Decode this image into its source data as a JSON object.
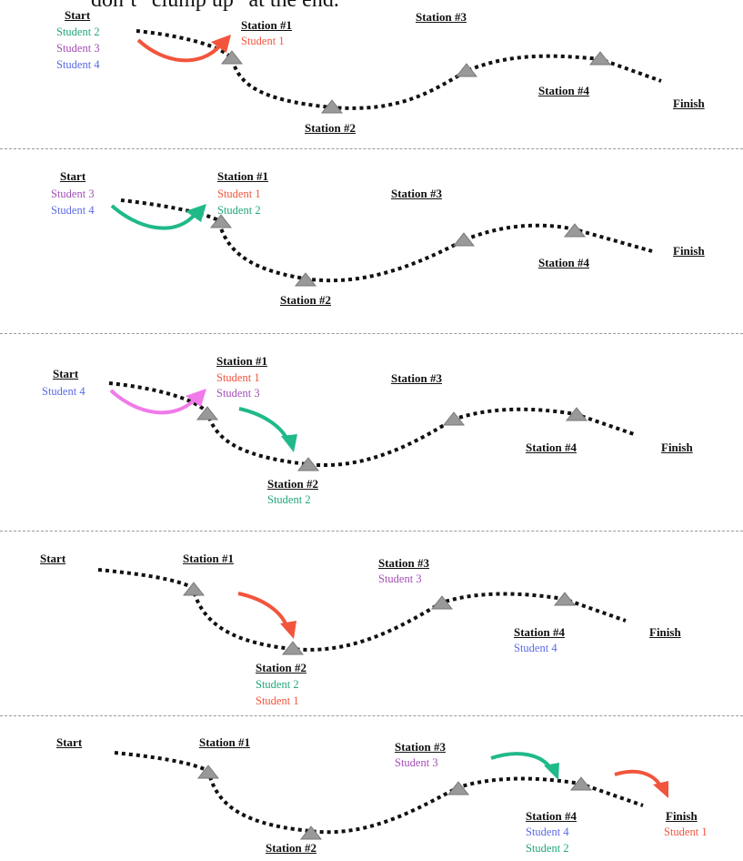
{
  "header_fragment": "don’t “clump up” at the end.",
  "colors": {
    "student1": "#f2553c",
    "student2": "#22a77a",
    "student3": "#a44fb6",
    "student4": "#5a6ae6",
    "arrow_red": "#f2553c",
    "arrow_green": "#1fb98a",
    "arrow_pink": "#f07ae9"
  },
  "labels": {
    "start": "Start",
    "finish": "Finish",
    "station1": "Station #1",
    "station2": "Station #2",
    "station3": "Station #3",
    "station4": "Station #4"
  },
  "panels": [
    {
      "start_students": [
        "Student 2",
        "Student 3",
        "Student 4"
      ],
      "station1_students": [
        "Student 1"
      ],
      "station2_students": [],
      "station3_students": [],
      "station4_students": [],
      "finish_students": []
    },
    {
      "start_students": [
        "Student 3",
        "Student 4"
      ],
      "station1_students": [
        "Student 1",
        "Student 2"
      ],
      "station2_students": [],
      "station3_students": [],
      "station4_students": [],
      "finish_students": []
    },
    {
      "start_students": [
        "Student 4"
      ],
      "station1_students": [
        "Student 1",
        "Student 3"
      ],
      "station2_students": [
        "Student 2"
      ],
      "station3_students": [],
      "station4_students": [],
      "finish_students": []
    },
    {
      "start_students": [],
      "station1_students": [],
      "station2_students": [
        "Student 2",
        "Student 1"
      ],
      "station3_students": [
        "Student 3"
      ],
      "station4_students": [
        "Student 4"
      ],
      "finish_students": []
    },
    {
      "start_students": [],
      "station1_students": [],
      "station2_students": [],
      "station3_students": [
        "Student 3"
      ],
      "station4_students": [
        "Student 4",
        "Student 2"
      ],
      "finish_students": [
        "Student 1"
      ]
    }
  ]
}
